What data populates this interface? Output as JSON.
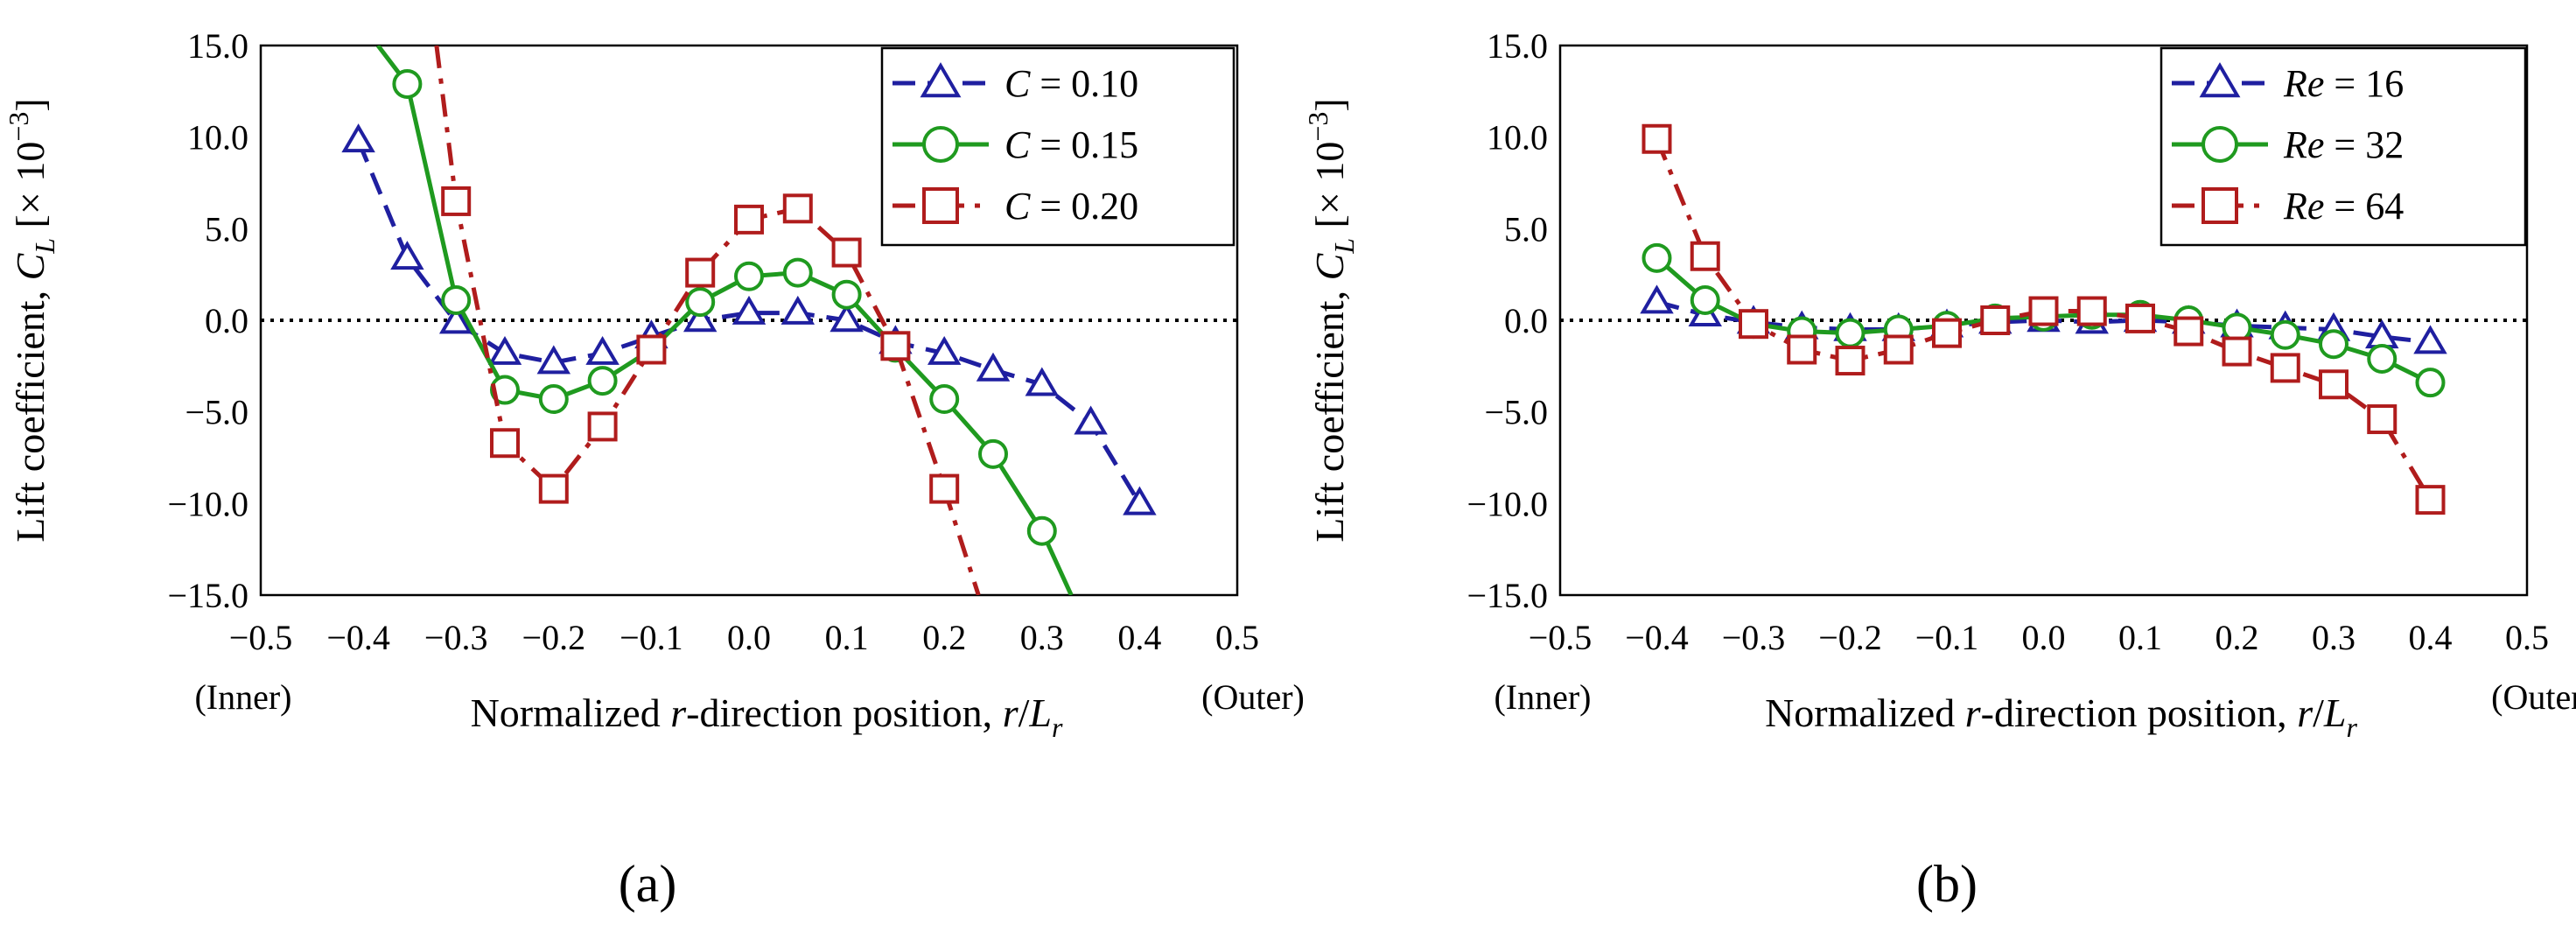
{
  "chart_data": [
    {
      "type": "line",
      "panel_label": "(a)",
      "xlabel": "Normalized r-direction position, r/L_r",
      "xlabel_parts": [
        "Normalized ",
        "r",
        "-direction position, ",
        "r",
        "/",
        "L",
        "r"
      ],
      "ylabel_parts": [
        "Lift coefficient, ",
        "C",
        "L",
        " [× 10",
        "−3",
        "]"
      ],
      "inner_label": "(Inner)",
      "outer_label": "(Outer)",
      "xlim": [
        -0.5,
        0.5
      ],
      "ylim": [
        -15.0,
        15.0
      ],
      "xticks": [
        "−0.5",
        "−0.4",
        "−0.3",
        "−0.2",
        "−0.1",
        "0.0",
        "0.1",
        "0.2",
        "0.3",
        "0.4",
        "0.5"
      ],
      "yticks": [
        "15.0",
        "10.0",
        "5.0",
        "0.0",
        "−5.0",
        "−10.0",
        "−15.0"
      ],
      "legend_position": "top-right",
      "series": [
        {
          "name": "C = 0.10",
          "legend_var": "C",
          "legend_val": " = 0.10",
          "marker": "triangle",
          "line": "dashed",
          "color": "#1f1fa0",
          "x": [
            -0.4,
            -0.35,
            -0.3,
            -0.25,
            -0.2,
            -0.15,
            -0.1,
            -0.05,
            0.0,
            0.05,
            0.1,
            0.15,
            0.2,
            0.25,
            0.3,
            0.35,
            0.4
          ],
          "y": [
            9.8,
            3.4,
            -0.1,
            -1.8,
            -2.3,
            -1.8,
            -0.9,
            0.0,
            0.4,
            0.4,
            0.0,
            -1.2,
            -1.8,
            -2.7,
            -3.5,
            -5.6,
            -10.0
          ]
        },
        {
          "name": "C = 0.15",
          "legend_var": "C",
          "legend_val": " = 0.15",
          "marker": "circle",
          "line": "solid",
          "color": "#1f9a1f",
          "x": [
            -0.38,
            -0.35,
            -0.3,
            -0.25,
            -0.2,
            -0.15,
            -0.1,
            -0.05,
            0.0,
            0.05,
            0.1,
            0.15,
            0.2,
            0.25,
            0.3,
            0.33
          ],
          "y": [
            15.0,
            12.9,
            1.1,
            -3.8,
            -4.3,
            -3.3,
            -1.6,
            1.0,
            2.4,
            2.6,
            1.4,
            -1.5,
            -4.3,
            -7.3,
            -11.5,
            -15.0
          ],
          "markers_at": [
            1,
            2,
            3,
            4,
            5,
            6,
            7,
            8,
            9,
            10,
            11,
            12,
            13,
            14
          ]
        },
        {
          "name": "C = 0.20",
          "legend_var": "C",
          "legend_val": " = 0.20",
          "marker": "square",
          "line": "dashdot",
          "color": "#b01c1c",
          "x": [
            -0.32,
            -0.3,
            -0.25,
            -0.2,
            -0.15,
            -0.1,
            -0.05,
            0.0,
            0.05,
            0.1,
            0.15,
            0.2,
            0.235
          ],
          "y": [
            15.0,
            6.5,
            -6.7,
            -9.2,
            -5.8,
            -1.6,
            2.6,
            5.5,
            6.1,
            3.7,
            -1.4,
            -9.2,
            -15.0
          ],
          "markers_at": [
            1,
            2,
            3,
            4,
            5,
            6,
            7,
            8,
            9,
            10,
            11
          ]
        }
      ]
    },
    {
      "type": "line",
      "panel_label": "(b)",
      "xlabel": "Normalized r-direction position, r/L_r",
      "xlabel_parts": [
        "Normalized ",
        "r",
        "-direction position, ",
        "r",
        "/",
        "L",
        "r"
      ],
      "ylabel_parts": [
        "Lift coefficient, ",
        "C",
        "L",
        " [× 10",
        "−3",
        "]"
      ],
      "inner_label": "(Inner)",
      "outer_label": "(Outer)",
      "xlim": [
        -0.5,
        0.5
      ],
      "ylim": [
        -15.0,
        15.0
      ],
      "xticks": [
        "−0.5",
        "−0.4",
        "−0.3",
        "−0.2",
        "−0.1",
        "0.0",
        "0.1",
        "0.2",
        "0.3",
        "0.4",
        "0.5"
      ],
      "yticks": [
        "15.0",
        "10.0",
        "5.0",
        "0.0",
        "−5.0",
        "−10.0",
        "−15.0"
      ],
      "legend_position": "top-right",
      "series": [
        {
          "name": "Re = 16",
          "legend_var": "Re",
          "legend_val": " = 16",
          "marker": "triangle",
          "line": "dashed",
          "color": "#1f1fa0",
          "x": [
            -0.4,
            -0.35,
            -0.3,
            -0.25,
            -0.2,
            -0.15,
            -0.1,
            -0.05,
            0.0,
            0.05,
            0.1,
            0.15,
            0.2,
            0.25,
            0.3,
            0.35,
            0.4
          ],
          "y": [
            1.0,
            0.3,
            -0.1,
            -0.4,
            -0.5,
            -0.5,
            -0.3,
            -0.1,
            0.0,
            -0.1,
            0.0,
            -0.1,
            -0.3,
            -0.4,
            -0.5,
            -0.9,
            -1.2
          ]
        },
        {
          "name": "Re = 32",
          "legend_var": "Re",
          "legend_val": " = 32",
          "marker": "circle",
          "line": "solid",
          "color": "#1f9a1f",
          "x": [
            -0.4,
            -0.35,
            -0.3,
            -0.25,
            -0.2,
            -0.15,
            -0.1,
            -0.05,
            0.0,
            0.05,
            0.1,
            0.15,
            0.2,
            0.25,
            0.3,
            0.35,
            0.4
          ],
          "y": [
            3.4,
            1.1,
            -0.2,
            -0.6,
            -0.7,
            -0.5,
            -0.3,
            0.1,
            0.2,
            0.3,
            0.3,
            0.0,
            -0.4,
            -0.8,
            -1.3,
            -2.1,
            -3.4
          ]
        },
        {
          "name": "Re = 64",
          "legend_var": "Re",
          "legend_val": " = 64",
          "marker": "square",
          "line": "dashdot",
          "color": "#b01c1c",
          "x": [
            -0.4,
            -0.35,
            -0.3,
            -0.25,
            -0.2,
            -0.15,
            -0.1,
            -0.05,
            0.0,
            0.05,
            0.1,
            0.15,
            0.2,
            0.25,
            0.3,
            0.35,
            0.4
          ],
          "y": [
            9.9,
            3.5,
            -0.2,
            -1.6,
            -2.2,
            -1.6,
            -0.7,
            0.0,
            0.5,
            0.5,
            0.1,
            -0.6,
            -1.7,
            -2.6,
            -3.5,
            -5.4,
            -9.8
          ]
        }
      ]
    }
  ]
}
